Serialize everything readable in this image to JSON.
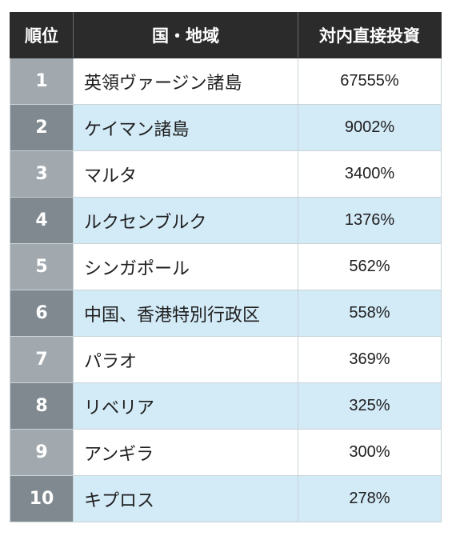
{
  "table": {
    "headers": {
      "rank": "順位",
      "country": "国・地域",
      "fdi": "対内直接投資"
    },
    "rows": [
      {
        "rank": "1",
        "country": "英領ヴァージン諸島",
        "value": "67555%"
      },
      {
        "rank": "2",
        "country": "ケイマン諸島",
        "value": "9002%"
      },
      {
        "rank": "3",
        "country": "マルタ",
        "value": "3400%"
      },
      {
        "rank": "4",
        "country": "ルクセンブルク",
        "value": "1376%"
      },
      {
        "rank": "5",
        "country": "シンガポール",
        "value": "562%"
      },
      {
        "rank": "6",
        "country": "中国、香港特別行政区",
        "value": "558%"
      },
      {
        "rank": "7",
        "country": "パラオ",
        "value": "369%"
      },
      {
        "rank": "8",
        "country": "リベリア",
        "value": "325%"
      },
      {
        "rank": "9",
        "country": "アンギラ",
        "value": "300%"
      },
      {
        "rank": "10",
        "country": "キプロス",
        "value": "278%"
      }
    ]
  },
  "colors": {
    "header_bg": "#2b2b2b",
    "rank_odd_bg": "#a2a9ae",
    "rank_even_bg": "#7f898f",
    "row_even_bg": "#d3eaf7",
    "row_odd_bg": "#ffffff"
  }
}
